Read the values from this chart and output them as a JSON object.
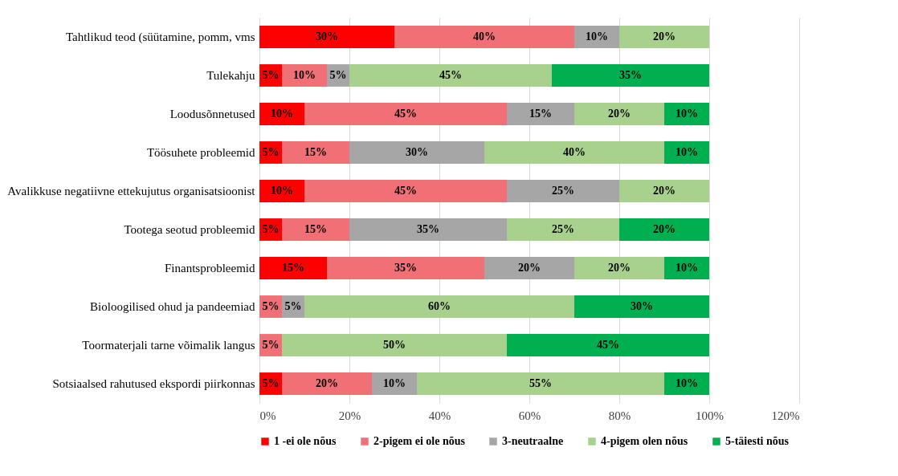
{
  "chart_data": {
    "type": "bar",
    "orientation": "horizontal",
    "stacked": true,
    "categories": [
      "Tahtlikud teod (süütamine, pomm, vms",
      "Tulekahju",
      "Loodusõnnetused",
      "Töösuhete probleemid",
      "Avalikkuse negatiivne ettekujutus organisatsioonist",
      "Tootega seotud probleemid",
      "Finantsprobleemid",
      "Bioloogilised ohud ja pandeemiad",
      "Toormaterjali tarne võimalik langus",
      "Sotsiaalsed rahutused ekspordi piirkonnas"
    ],
    "series": [
      {
        "name": "1 -ei ole nõus",
        "color": "#ff0000",
        "values": [
          30,
          5,
          10,
          5,
          10,
          5,
          15,
          null,
          null,
          5
        ],
        "value_labels": [
          "30%",
          "5%",
          "10%",
          "5%",
          "10%",
          "5%",
          "15%",
          null,
          null,
          "5%"
        ]
      },
      {
        "name": "2-pigem ei ole nõus",
        "color": "#f07076",
        "values": [
          40,
          10,
          45,
          15,
          45,
          15,
          35,
          5,
          5,
          20
        ],
        "value_labels": [
          "40%",
          "10%",
          "45%",
          "15%",
          "45%",
          "15%",
          "35%",
          "5%",
          "5%",
          "20%"
        ]
      },
      {
        "name": "3-neutraalne",
        "color": "#a6a6a6",
        "values": [
          10,
          5,
          15,
          30,
          25,
          35,
          20,
          5,
          null,
          10
        ],
        "value_labels": [
          "10%",
          "5%",
          "15%",
          "30%",
          "25%",
          "35%",
          "20%",
          "5%",
          null,
          "10%"
        ]
      },
      {
        "name": "4-pigem olen nõus",
        "color": "#a9d18e",
        "values": [
          20,
          45,
          20,
          40,
          20,
          25,
          20,
          60,
          50,
          55
        ],
        "value_labels": [
          "20%",
          "45%",
          "20%",
          "40%",
          "20%",
          "25%",
          "20%",
          "60%",
          "50%",
          "55%"
        ]
      },
      {
        "name": "5-täiesti nõus",
        "color": "#00b050",
        "values": [
          null,
          35,
          10,
          10,
          null,
          20,
          10,
          30,
          45,
          10
        ],
        "value_labels": [
          null,
          "35%",
          "10%",
          "10%",
          null,
          "20%",
          "10%",
          "30%",
          "45%",
          "10%"
        ]
      }
    ],
    "xlim": [
      0,
      120
    ],
    "xticks": [
      {
        "value": 0,
        "label": "0%"
      },
      {
        "value": 20,
        "label": "20%"
      },
      {
        "value": 40,
        "label": "40%"
      },
      {
        "value": 60,
        "label": "60%"
      },
      {
        "value": 80,
        "label": "80%"
      },
      {
        "value": 100,
        "label": "100%"
      },
      {
        "value": 120,
        "label": "120%"
      }
    ],
    "grid": "x",
    "legend": "bottom"
  }
}
